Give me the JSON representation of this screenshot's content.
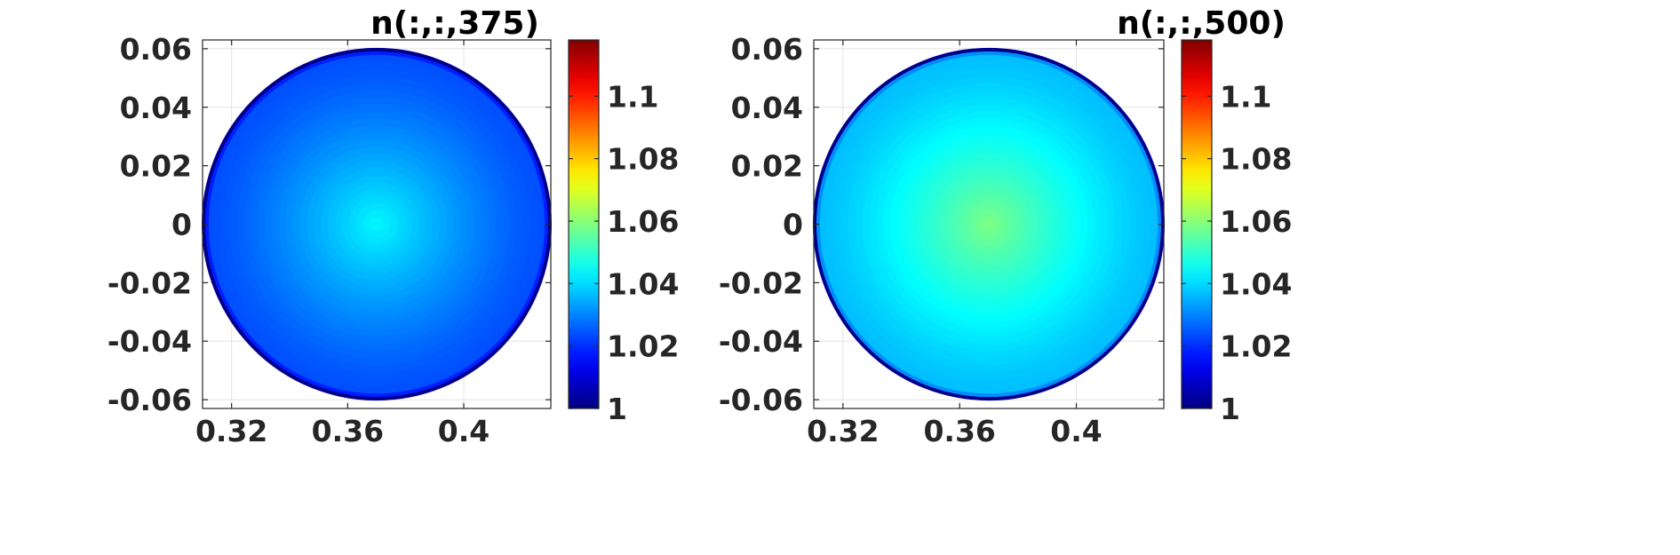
{
  "chart_data": [
    {
      "type": "heatmap",
      "title": "n(:,:,375)",
      "x_ticks": [
        0.32,
        0.36,
        0.4
      ],
      "x_tick_labels": [
        "0.32",
        "0.36",
        "0.4"
      ],
      "y_ticks": [
        0.06,
        0.04,
        0.02,
        0,
        -0.02,
        -0.04,
        -0.06
      ],
      "y_tick_labels": [
        "0.06",
        "0.04",
        "0.02",
        "0",
        "-0.02",
        "-0.04",
        "-0.06"
      ],
      "xlim": [
        0.31,
        0.43
      ],
      "ylim": [
        -0.063,
        0.063
      ],
      "grid": true,
      "region": {
        "shape": "circle",
        "center": [
          0.37,
          0.0
        ],
        "radius": 0.06
      },
      "center_value": 1.043,
      "interior_edge_value": 1.024,
      "rim_value": 1.0,
      "colorbar": {
        "colormap": "jet",
        "range": [
          1.0,
          1.118
        ],
        "ticks": [
          1.0,
          1.02,
          1.04,
          1.06,
          1.08,
          1.1
        ],
        "tick_labels": [
          "1",
          "1.02",
          "1.04",
          "1.06",
          "1.08",
          "1.1"
        ]
      }
    },
    {
      "type": "heatmap",
      "title": "n(:,:,500)",
      "x_ticks": [
        0.32,
        0.36,
        0.4
      ],
      "x_tick_labels": [
        "0.32",
        "0.36",
        "0.4"
      ],
      "y_ticks": [
        0.06,
        0.04,
        0.02,
        0,
        -0.02,
        -0.04,
        -0.06
      ],
      "y_tick_labels": [
        "0.06",
        "0.04",
        "0.02",
        "0",
        "-0.02",
        "-0.04",
        "-0.06"
      ],
      "xlim": [
        0.31,
        0.43
      ],
      "ylim": [
        -0.063,
        0.063
      ],
      "grid": true,
      "region": {
        "shape": "circle",
        "center": [
          0.37,
          0.0
        ],
        "radius": 0.06
      },
      "center_value": 1.058,
      "interior_edge_value": 1.037,
      "rim_value": 1.0,
      "colorbar": {
        "colormap": "jet",
        "range": [
          1.0,
          1.118
        ],
        "ticks": [
          1.0,
          1.02,
          1.04,
          1.06,
          1.08,
          1.1
        ],
        "tick_labels": [
          "1",
          "1.02",
          "1.04",
          "1.06",
          "1.08",
          "1.1"
        ]
      }
    }
  ]
}
